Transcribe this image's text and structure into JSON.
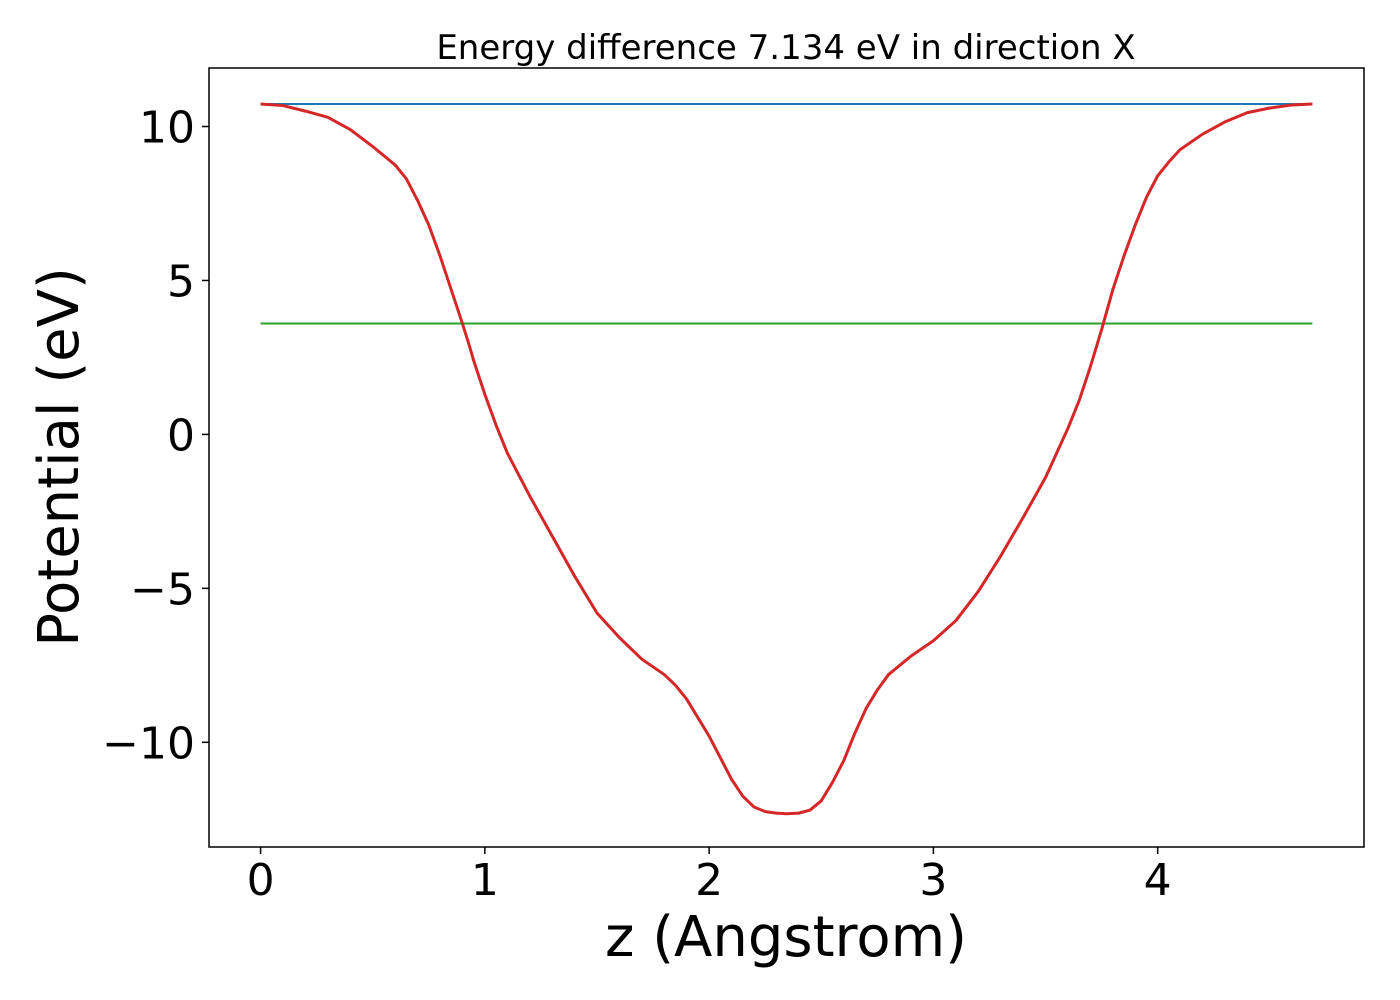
{
  "chart_data": {
    "type": "line",
    "title": "Energy difference 7.134 eV in direction X",
    "xlabel": "z (Angstrom)",
    "ylabel": "Potential (eV)",
    "xlim": [
      -0.23,
      4.92
    ],
    "ylim": [
      -13.4,
      11.9
    ],
    "xticks": [
      {
        "value": 0,
        "label": "0"
      },
      {
        "value": 1,
        "label": "1"
      },
      {
        "value": 2,
        "label": "2"
      },
      {
        "value": 3,
        "label": "3"
      },
      {
        "value": 4,
        "label": "4"
      }
    ],
    "yticks": [
      {
        "value": -10,
        "label": "−10"
      },
      {
        "value": -5,
        "label": "−5"
      },
      {
        "value": 0,
        "label": "0"
      },
      {
        "value": 5,
        "label": "5"
      },
      {
        "value": 10,
        "label": "10"
      }
    ],
    "grid": false,
    "series": [
      {
        "color": "#1f77b4",
        "x": [
          0.0,
          4.69
        ],
        "y": [
          10.73,
          10.73
        ]
      },
      {
        "color": "#2ca02c",
        "x": [
          0.0,
          4.69
        ],
        "y": [
          3.6,
          3.6
        ]
      },
      {
        "color": "#d62728",
        "x": [
          0.0,
          0.1,
          0.2,
          0.3,
          0.4,
          0.5,
          0.6,
          0.65,
          0.7,
          0.75,
          0.8,
          0.85,
          0.9,
          0.93,
          0.95,
          1.0,
          1.05,
          1.1,
          1.2,
          1.3,
          1.4,
          1.5,
          1.6,
          1.7,
          1.8,
          1.85,
          1.9,
          1.95,
          2.0,
          2.05,
          2.1,
          2.15,
          2.2,
          2.25,
          2.3,
          2.345,
          2.4,
          2.45,
          2.5,
          2.55,
          2.6,
          2.65,
          2.7,
          2.75,
          2.8,
          2.85,
          2.9,
          3.0,
          3.1,
          3.2,
          3.3,
          3.4,
          3.5,
          3.6,
          3.65,
          3.7,
          3.75,
          3.8,
          3.85,
          3.9,
          3.95,
          4.0,
          4.05,
          4.1,
          4.2,
          4.3,
          4.4,
          4.5,
          4.6,
          4.69
        ],
        "y": [
          10.73,
          10.68,
          10.5,
          10.3,
          9.9,
          9.35,
          8.75,
          8.3,
          7.6,
          6.8,
          5.8,
          4.7,
          3.6,
          2.9,
          2.4,
          1.3,
          0.3,
          -0.6,
          -2.0,
          -3.3,
          -4.6,
          -5.8,
          -6.6,
          -7.3,
          -7.8,
          -8.15,
          -8.6,
          -9.2,
          -9.8,
          -10.5,
          -11.2,
          -11.75,
          -12.1,
          -12.25,
          -12.3,
          -12.32,
          -12.3,
          -12.2,
          -11.9,
          -11.3,
          -10.6,
          -9.7,
          -8.9,
          -8.3,
          -7.8,
          -7.5,
          -7.2,
          -6.7,
          -6.05,
          -5.1,
          -3.95,
          -2.7,
          -1.4,
          0.2,
          1.1,
          2.2,
          3.4,
          4.7,
          5.8,
          6.8,
          7.7,
          8.4,
          8.85,
          9.25,
          9.75,
          10.15,
          10.45,
          10.6,
          10.7,
          10.73
        ]
      }
    ]
  }
}
